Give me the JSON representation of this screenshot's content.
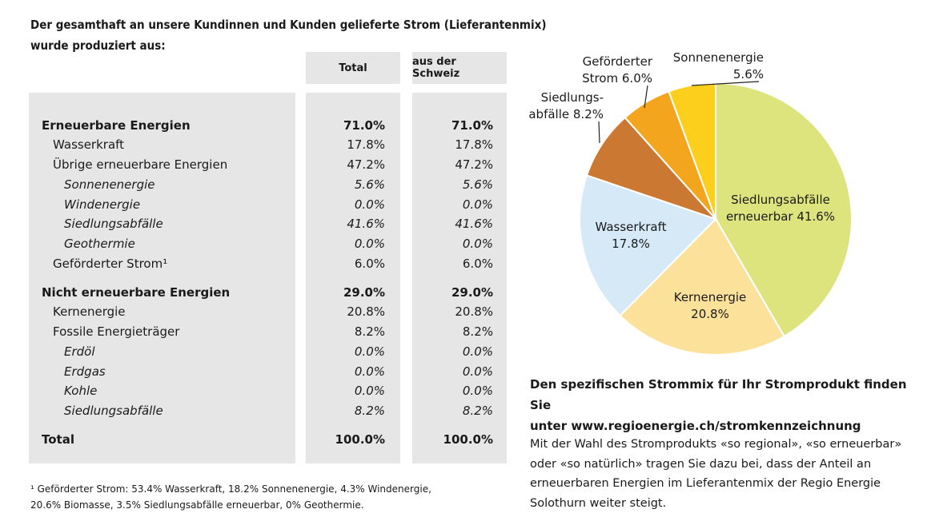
{
  "header": {
    "title_line1": "Der gesamthaft an unsere Kundinnen und Kunden gelieferte Strom (Lieferantenmix)",
    "title_line2": "wurde produziert aus:"
  },
  "table": {
    "col_total": "Total",
    "col_schweiz": "aus der Schweiz",
    "rows": [
      {
        "label": "Erneuerbare Energien",
        "total": "71.0%",
        "ch": "71.0%"
      },
      {
        "label": "Wasserkraft",
        "total": "17.8%",
        "ch": "17.8%"
      },
      {
        "label": "Übrige erneuerbare Energien",
        "total": "47.2%",
        "ch": "47.2%"
      },
      {
        "label": "Sonnenenergie",
        "total": "5.6%",
        "ch": "5.6%"
      },
      {
        "label": "Windenergie",
        "total": "0.0%",
        "ch": "0.0%"
      },
      {
        "label": "Siedlungsabfälle",
        "total": "41.6%",
        "ch": "41.6%"
      },
      {
        "label": "Geothermie",
        "total": "0.0%",
        "ch": "0.0%"
      },
      {
        "label": "Geförderter Strom¹",
        "total": "6.0%",
        "ch": "6.0%"
      },
      {
        "label": "Nicht erneuerbare Energien",
        "total": "29.0%",
        "ch": "29.0%"
      },
      {
        "label": "Kernenergie",
        "total": "20.8%",
        "ch": "20.8%"
      },
      {
        "label": "Fossile Energieträger",
        "total": "8.2%",
        "ch": "8.2%"
      },
      {
        "label": "Erdöl",
        "total": "0.0%",
        "ch": "0.0%"
      },
      {
        "label": "Erdgas",
        "total": "0.0%",
        "ch": "0.0%"
      },
      {
        "label": "Kohle",
        "total": "0.0%",
        "ch": "0.0%"
      },
      {
        "label": "Siedlungsabfälle",
        "total": "8.2%",
        "ch": "8.2%"
      },
      {
        "label": "Total",
        "total": "100.0%",
        "ch": "100.0%"
      }
    ]
  },
  "footnote": {
    "line1": "¹ Geförderter Strom: 53.4% Wasserkraft, 18.2% Sonnenenergie, 4.3% Windenergie,",
    "line2": "20.6% Biomasse, 3.5% Siedlungsabfälle erneuerbar, 0% Geothermie."
  },
  "right_text": {
    "bold_line1": "Den spezifischen Strommix für Ihr Stromprodukt finden Sie",
    "bold_line2": "unter www.regioenergie.ch/stromkennzeichnung",
    "para_line1": "Mit der Wahl des Stromprodukts «so regional», «so erneuerbar»",
    "para_line2": "oder «so natürlich» tragen Sie dazu bei, dass der Anteil an",
    "para_line3": "erneuerbaren Energien im Lieferantenmix der Regio Energie",
    "para_line4": "Solothurn weiter steigt."
  },
  "chart_data": {
    "type": "pie",
    "slices": [
      {
        "label_lines": [
          "Siedlungsabfälle",
          "erneuerbar 41.6%"
        ],
        "value": 41.6,
        "color": "#dde47e"
      },
      {
        "label_lines": [
          "Kernenergie",
          "20.8%"
        ],
        "value": 20.8,
        "color": "#fbe19a"
      },
      {
        "label_lines": [
          "Wasserkraft",
          "17.8%"
        ],
        "value": 17.8,
        "color": "#d5e9f7"
      },
      {
        "label_lines": [
          "Siedlungs-",
          "abfälle 8.2%"
        ],
        "value": 8.2,
        "color": "#cb7932"
      },
      {
        "label_lines": [
          "Geförderter",
          "Strom 6.0%"
        ],
        "value": 6.0,
        "color": "#f3a51d"
      },
      {
        "label_lines": [
          "Sonnenenergie",
          "5.6%"
        ],
        "value": 5.6,
        "color": "#fbcf1c"
      }
    ]
  }
}
